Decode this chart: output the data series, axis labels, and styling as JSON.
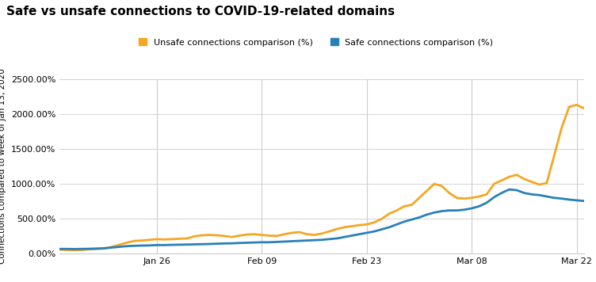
{
  "title": "Safe vs unsafe connections to COVID-19-related domains",
  "ylabel": "Connections compared to week of Jan 13, 2020",
  "legend_unsafe": "Unsafe connections comparison (%)",
  "legend_safe": "Safe connections comparison (%)",
  "unsafe_color": "#F5A623",
  "safe_color": "#2980B9",
  "background_color": "#ffffff",
  "ylim": [
    0,
    2500
  ],
  "yticks": [
    0,
    500,
    1000,
    1500,
    2000,
    2500
  ],
  "xtick_labels": [
    "Jan 26",
    "Feb 09",
    "Feb 23",
    "Mar 08",
    "Mar 22"
  ],
  "xtick_positions": [
    13,
    27,
    41,
    55,
    69
  ],
  "xlim": [
    0,
    70
  ],
  "unsafe_y": [
    60,
    55,
    50,
    55,
    65,
    70,
    75,
    100,
    130,
    160,
    185,
    190,
    200,
    210,
    205,
    210,
    215,
    220,
    250,
    265,
    270,
    265,
    255,
    240,
    260,
    275,
    280,
    270,
    260,
    255,
    280,
    300,
    310,
    280,
    270,
    290,
    320,
    355,
    380,
    395,
    410,
    420,
    450,
    500,
    575,
    620,
    680,
    700,
    800,
    900,
    1000,
    970,
    870,
    800,
    790,
    800,
    820,
    850,
    1000,
    1050,
    1100,
    1130,
    1070,
    1030,
    990,
    1010,
    1400,
    1800,
    2100,
    2130,
    2080
  ],
  "safe_y": [
    70,
    70,
    68,
    70,
    72,
    75,
    80,
    90,
    100,
    110,
    115,
    118,
    120,
    125,
    125,
    128,
    130,
    132,
    135,
    138,
    140,
    145,
    148,
    150,
    155,
    158,
    162,
    165,
    165,
    170,
    175,
    180,
    185,
    190,
    195,
    200,
    210,
    220,
    240,
    260,
    280,
    300,
    320,
    350,
    380,
    420,
    460,
    490,
    520,
    560,
    590,
    610,
    620,
    620,
    630,
    650,
    680,
    730,
    810,
    870,
    920,
    910,
    870,
    850,
    840,
    820,
    800,
    790,
    775,
    765,
    755
  ],
  "title_fontsize": 11,
  "legend_fontsize": 8,
  "tick_fontsize": 8,
  "ylabel_fontsize": 7.5,
  "line_width": 2.0
}
